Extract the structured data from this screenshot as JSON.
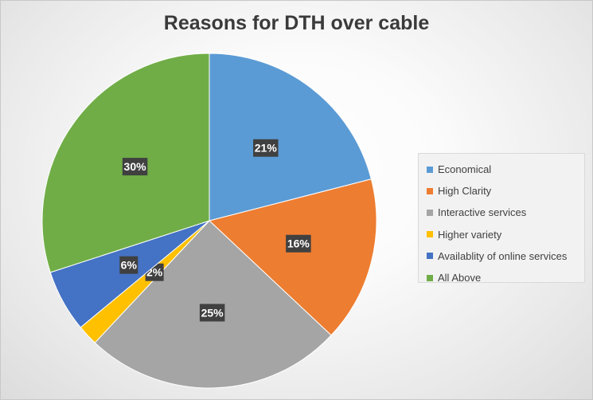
{
  "chart_data": {
    "type": "pie",
    "title": "Reasons for DTH over cable",
    "categories": [
      "Economical",
      "High Clarity",
      "Interactive services",
      "Higher variety",
      "Availablity of online services",
      "All Above"
    ],
    "values": [
      21,
      16,
      25,
      2,
      6,
      30
    ],
    "data_labels": [
      "21%",
      "16%",
      "25%",
      "2%",
      "6%",
      "30%"
    ],
    "colors": [
      "#5b9bd5",
      "#ed7d31",
      "#a5a5a5",
      "#ffc000",
      "#4472c4",
      "#70ad47"
    ],
    "legend_position": "right"
  }
}
